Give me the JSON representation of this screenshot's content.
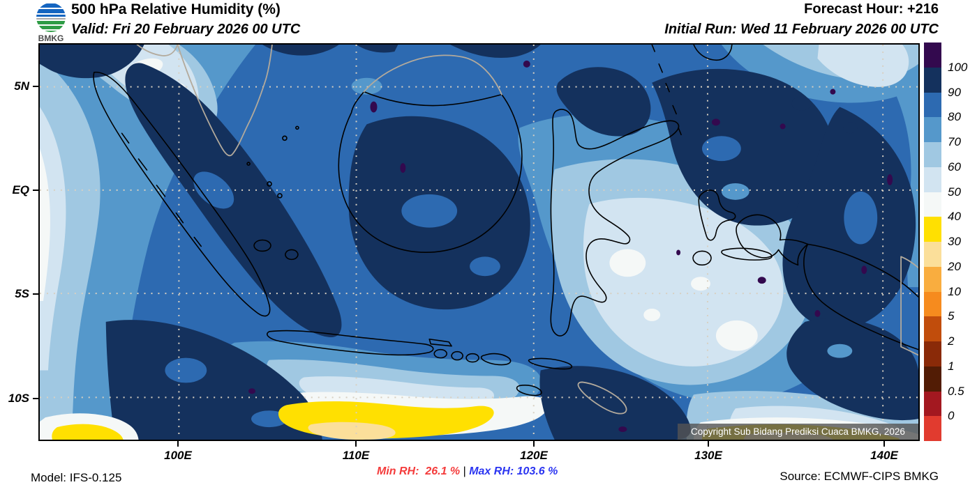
{
  "header": {
    "logo_text": "BMKG",
    "title": "500 hPa Relative Humidity (%)",
    "valid": "Valid: Fri 20 February 2026 00 UTC",
    "forecast_hour": "Forecast Hour: +216",
    "initial_run": "Initial Run: Wed 11 February 2026 00 UTC"
  },
  "map": {
    "lat_labels": [
      "5N",
      "EQ",
      "5S",
      "10S"
    ],
    "lon_labels": [
      "100E",
      "110E",
      "120E",
      "130E",
      "140E"
    ],
    "copyright": "Copyright Sub Bidang Prediksi Cuaca BMKG, 2026"
  },
  "colorbar": {
    "tick_labels": [
      "100",
      "90",
      "80",
      "70",
      "60",
      "50",
      "40",
      "30",
      "20",
      "10",
      "5",
      "2",
      "1",
      "0.5",
      "0"
    ],
    "segment_colors_top_to_bottom": [
      "#33094e",
      "#14315d",
      "#2d6ab1",
      "#5598cb",
      "#a0c8e2",
      "#d2e4f1",
      "#f5f8f7",
      "#ffe001",
      "#fbdf9a",
      "#f9ad3f",
      "#f68b1e",
      "#c14d0c",
      "#8a2a08",
      "#521c05",
      "#a31820",
      "#e13b2f"
    ]
  },
  "footer": {
    "model": "Model: IFS-0.125",
    "min_rh": "Min RH:  26.1 %",
    "separator": "|",
    "max_rh": "Max RH: 103.6 %",
    "min_rh_color": "#f43b3b",
    "max_rh_color": "#2b35f1",
    "source": "Source: ECMWF-CIPS BMKG"
  }
}
